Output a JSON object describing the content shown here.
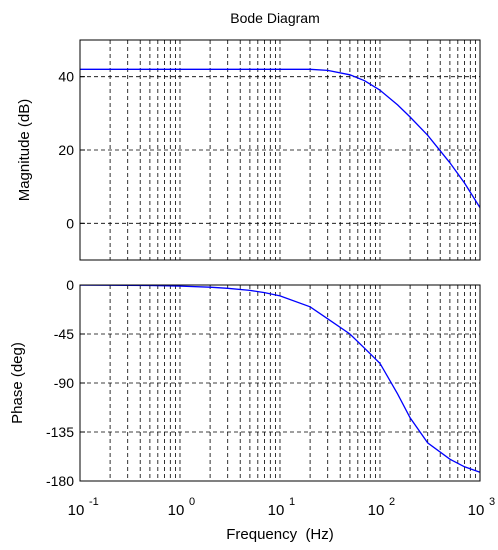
{
  "chart_data": [
    {
      "type": "line",
      "title": "Bode Diagram",
      "xlabel": "",
      "ylabel": "Magnitude (dB)",
      "xscale": "log",
      "xlim": [
        0.1,
        1000
      ],
      "ylim": [
        -10,
        50
      ],
      "yticks": [
        40,
        20,
        0
      ],
      "ytick_labels": [
        "40",
        "20",
        "0"
      ],
      "grid": true,
      "line_color": "#0000ff",
      "series": [
        {
          "x": [
            0.1,
            0.2,
            0.5,
            1,
            2,
            5,
            10,
            20,
            30,
            50,
            70,
            100,
            150,
            200,
            300,
            500,
            700,
            1000
          ],
          "values": [
            42,
            42,
            42,
            42,
            42,
            42,
            42,
            42,
            41.7,
            40.5,
            38.9,
            36.3,
            32.3,
            29,
            24,
            16.5,
            11,
            4.3
          ]
        }
      ]
    },
    {
      "type": "line",
      "title": "",
      "xlabel": "Frequency  (Hz)",
      "ylabel": "Phase (deg)",
      "xscale": "log",
      "xlim": [
        0.1,
        1000
      ],
      "ylim": [
        -180,
        0
      ],
      "xtick_bases": [
        "10",
        "10",
        "10",
        "10",
        "10"
      ],
      "xtick_exponents": [
        "-1",
        "0",
        "1",
        "2",
        "3"
      ],
      "yticks": [
        0,
        -45,
        -90,
        -135,
        -180
      ],
      "ytick_labels": [
        "0",
        "-45",
        "-90",
        "-135",
        "-180"
      ],
      "grid": true,
      "line_color": "#0000ff",
      "series": [
        {
          "x": [
            0.1,
            0.2,
            0.5,
            1,
            2,
            3,
            5,
            7,
            10,
            20,
            30,
            50,
            70,
            100,
            150,
            200,
            300,
            500,
            700,
            1000
          ],
          "values": [
            -0.1,
            -0.2,
            -0.5,
            -1,
            -2,
            -3,
            -5,
            -7,
            -10,
            -20,
            -31,
            -45,
            -58,
            -72,
            -100,
            -122,
            -145,
            -160,
            -167,
            -172
          ]
        }
      ]
    }
  ]
}
